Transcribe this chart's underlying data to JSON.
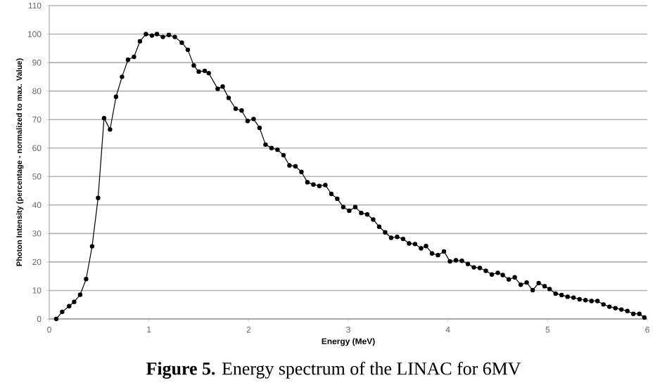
{
  "chart_data": {
    "type": "line",
    "xlabel": "Energy (MeV)",
    "ylabel": "Photon Intensity (percentage - normalized to max. Value)",
    "annotations": [
      "**Figure 5.** Energy spectrum of the LINAC for 6MV"
    ],
    "x": [
      0.07,
      0.13,
      0.2,
      0.25,
      0.31,
      0.37,
      0.43,
      0.49,
      0.55,
      0.61,
      0.67,
      0.73,
      0.79,
      0.85,
      0.91,
      0.97,
      1.03,
      1.08,
      1.14,
      1.2,
      1.26,
      1.33,
      1.39,
      1.45,
      1.5,
      1.56,
      1.6,
      1.69,
      1.74,
      1.8,
      1.87,
      1.93,
      1.99,
      2.05,
      2.11,
      2.17,
      2.23,
      2.29,
      2.35,
      2.41,
      2.47,
      2.53,
      2.59,
      2.65,
      2.71,
      2.77,
      2.83,
      2.89,
      2.95,
      3.01,
      3.07,
      3.13,
      3.19,
      3.25,
      3.31,
      3.37,
      3.43,
      3.49,
      3.55,
      3.61,
      3.67,
      3.73,
      3.78,
      3.84,
      3.9,
      3.96,
      4.02,
      4.08,
      4.14,
      4.2,
      4.26,
      4.32,
      4.38,
      4.44,
      4.5,
      4.55,
      4.61,
      4.67,
      4.73,
      4.79,
      4.85,
      4.91,
      4.97,
      5.02,
      5.08,
      5.14,
      5.2,
      5.26,
      5.32,
      5.38,
      5.44,
      5.5,
      5.56,
      5.62,
      5.68,
      5.74,
      5.8,
      5.86,
      5.92,
      5.97
    ],
    "series": [
      {
        "color": "#000000",
        "values": [
          0,
          2.5,
          4.5,
          6,
          8.5,
          14,
          25.5,
          42.5,
          70.5,
          66.5,
          78,
          85,
          91,
          92,
          97.5,
          100,
          99.5,
          100,
          99,
          99.7,
          99,
          97,
          94.5,
          89,
          86.8,
          87.1,
          86.3,
          80.8,
          81.6,
          77.6,
          73.8,
          73.2,
          69.5,
          70.2,
          67.1,
          61.2,
          60,
          59.4,
          57.5,
          53.9,
          53.6,
          51.6,
          48,
          47.2,
          46.7,
          47,
          43.9,
          42.2,
          39.3,
          38,
          39.3,
          37.2,
          36.7,
          34.9,
          32.4,
          30.4,
          28.5,
          28.8,
          28.1,
          26.5,
          26.3,
          24.8,
          25.6,
          23,
          22.4,
          23.7,
          20.2,
          20.6,
          20.4,
          19.3,
          18.1,
          17.9,
          16.9,
          15.6,
          16.2,
          15.4,
          13.9,
          14.6,
          12,
          12.8,
          10.1,
          12.6,
          11.5,
          10.5,
          8.9,
          8.4,
          7.8,
          7.5,
          6.9,
          6.6,
          6.3,
          6.3,
          5.1,
          4.3,
          3.8,
          3.3,
          2.8,
          1.8,
          1.8,
          0.5
        ]
      }
    ],
    "xlim": [
      0,
      6
    ],
    "xticks": [
      0,
      1,
      2,
      3,
      4,
      5,
      6
    ],
    "ylim": [
      0,
      110
    ],
    "yticks": [
      0,
      10,
      20,
      30,
      40,
      50,
      60,
      70,
      80,
      90,
      100,
      110
    ],
    "grid": "y",
    "marker": "circle",
    "line_style": "solid"
  }
}
